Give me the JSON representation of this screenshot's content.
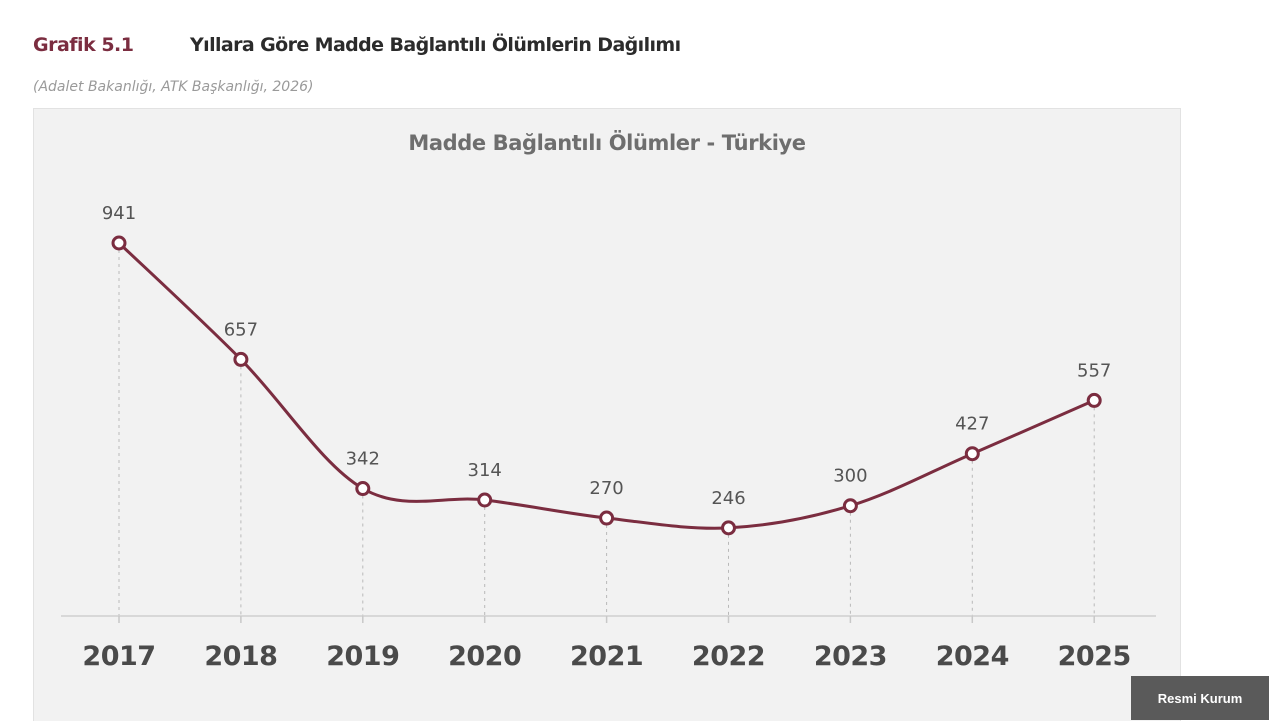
{
  "figure": {
    "label": "Grafik 5.1",
    "title": "Yıllara Göre Madde Bağlantılı Ölümlerin Dağılımı",
    "source": "(Adalet Bakanlığı, ATK Başkanlığı, 2026)"
  },
  "badge": {
    "label": "Resmi Kurum"
  },
  "colors": {
    "accent": "#7b2d40",
    "line": "#7b2d40",
    "panel": "#f2f2f2"
  },
  "chart_data": {
    "type": "line",
    "title": "Madde Bağlantılı Ölümler - Türkiye",
    "xlabel": "",
    "ylabel": "",
    "categories": [
      "2017",
      "2018",
      "2019",
      "2020",
      "2021",
      "2022",
      "2023",
      "2024",
      "2025"
    ],
    "series": [
      {
        "values": [
          941,
          657,
          342,
          314,
          270,
          246,
          300,
          427,
          557
        ]
      }
    ],
    "ylim": [
      0,
      941
    ],
    "grid": false,
    "data_labels": true,
    "marker": "hollow-circle",
    "smooth": true
  }
}
